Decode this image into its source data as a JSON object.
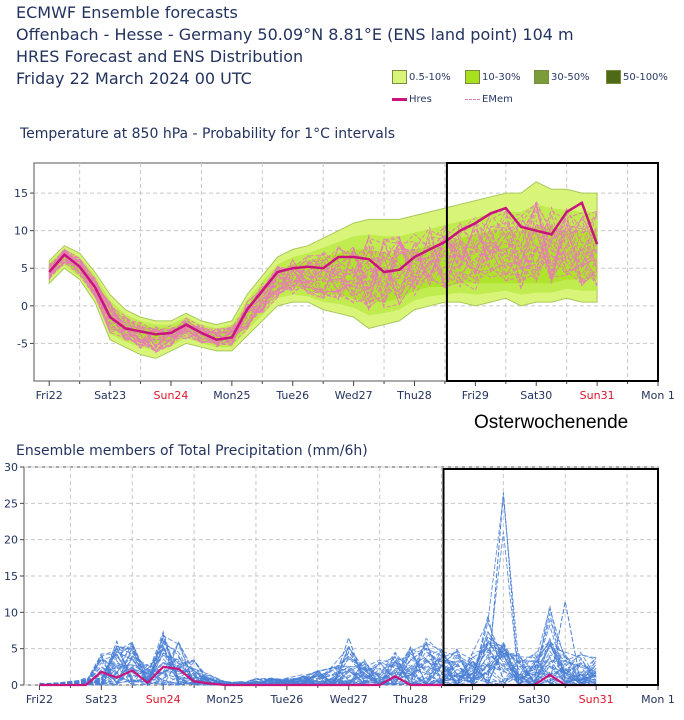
{
  "header": {
    "line1": "ECMWF Ensemble forecasts",
    "line2": "Offenbach - Hesse - Germany 50.09°N 8.81°E (ENS land point) 104 m",
    "line3": "HRES Forecast and ENS Distribution",
    "line4": "Friday 22 March 2024 00 UTC"
  },
  "legend": {
    "items": [
      {
        "label": "0.5-10%",
        "color": "#d8f57a"
      },
      {
        "label": "10-30%",
        "color": "#a8e020"
      },
      {
        "label": "30-50%",
        "color": "#7a9c3a"
      },
      {
        "label": "50-100%",
        "color": "#4e6a14"
      }
    ],
    "hres_label": "Hres",
    "emem_label": "EMem"
  },
  "annotation": "Osterwochenende",
  "chart_data": [
    {
      "type": "area",
      "title": "Temperature at 850 hPa - Probability for 1°C intervals",
      "xlabel": "",
      "ylabel": "",
      "ylim": [
        -10,
        19
      ],
      "categories": [
        "Fri22",
        "Sat23",
        "Sun24",
        "Mon25",
        "Tue26",
        "Wed27",
        "Thu28",
        "Fri29",
        "Sat30",
        "Sun31",
        "Mon 1"
      ],
      "category_colors": [
        "#23335f",
        "#23335f",
        "#e0142c",
        "#23335f",
        "#23335f",
        "#23335f",
        "#23335f",
        "#23335f",
        "#23335f",
        "#e0142c",
        "#23335f"
      ],
      "yticks": [
        -5,
        0,
        5,
        10,
        15
      ],
      "grid": true,
      "highlight_range": [
        7.0,
        10.0
      ],
      "hres": {
        "name": "Hres",
        "color": "#c8147c",
        "x": [
          0,
          0.25,
          0.5,
          0.75,
          1.0,
          1.25,
          1.5,
          1.75,
          2.0,
          2.25,
          2.5,
          2.75,
          3.0,
          3.25,
          3.5,
          3.75,
          4.0,
          4.25,
          4.5,
          4.75,
          5.0,
          5.25,
          5.5,
          5.75,
          6.0,
          6.25,
          6.5,
          6.75,
          7.0,
          7.25,
          7.5,
          7.75,
          8.0,
          8.25,
          8.5,
          8.75,
          9.0,
          9.25
        ],
        "values": [
          4.5,
          6.8,
          5.2,
          2.5,
          -1.5,
          -3.0,
          -3.4,
          -3.8,
          -3.6,
          -2.5,
          -3.6,
          -4.5,
          -4.2,
          -0.5,
          2.0,
          4.5,
          5.0,
          5.2,
          5.0,
          6.5,
          6.5,
          6.2,
          4.5,
          4.8,
          6.5,
          7.5,
          8.5,
          10.0,
          11.0,
          12.3,
          13.0,
          10.5,
          10.0,
          9.5,
          12.5,
          13.7,
          8.2,
          8.2
        ]
      },
      "ens_envelope": {
        "x": [
          0,
          0.25,
          0.5,
          0.75,
          1.0,
          1.25,
          1.5,
          1.75,
          2.0,
          2.25,
          2.5,
          2.75,
          3.0,
          3.25,
          3.5,
          3.75,
          4.0,
          4.25,
          4.5,
          4.75,
          5.0,
          5.25,
          5.5,
          5.75,
          6.0,
          6.25,
          6.5,
          6.75,
          7.0,
          7.25,
          7.5,
          7.75,
          8.0,
          8.25,
          8.5,
          8.75,
          9.0
        ],
        "upper": [
          6.0,
          8.0,
          7.0,
          4.5,
          1.5,
          -0.5,
          -1.5,
          -2.0,
          -2.0,
          -1.0,
          -2.0,
          -2.5,
          -2.0,
          1.5,
          4.0,
          6.5,
          7.5,
          8.0,
          9.0,
          10.0,
          11.0,
          11.5,
          11.5,
          11.5,
          12.0,
          12.5,
          13.0,
          13.5,
          14.0,
          14.5,
          15.0,
          15.0,
          16.5,
          15.5,
          15.5,
          15.0,
          15.0
        ],
        "lower": [
          3.0,
          5.0,
          3.5,
          0.5,
          -4.5,
          -5.5,
          -6.5,
          -7.0,
          -6.0,
          -5.0,
          -5.5,
          -6.0,
          -6.0,
          -4.0,
          -2.0,
          0.0,
          0.5,
          0.5,
          -0.5,
          -1.0,
          -1.5,
          -3.0,
          -2.5,
          -2.0,
          -0.5,
          0.0,
          0.5,
          0.5,
          0.0,
          0.5,
          1.0,
          0.0,
          0.5,
          0.5,
          1.0,
          0.5,
          0.5
        ]
      },
      "ens_core": {
        "x": [
          0,
          0.25,
          0.5,
          0.75,
          1.0,
          1.25,
          1.5,
          1.75,
          2.0,
          2.25,
          2.5,
          2.75,
          3.0,
          3.25,
          3.5,
          3.75,
          4.0,
          4.25,
          4.5,
          4.75,
          5.0,
          5.25,
          5.5,
          5.75,
          6.0,
          6.25,
          6.5,
          6.75,
          7.0,
          7.25,
          7.5,
          7.75,
          8.0,
          8.25,
          8.5,
          8.75,
          9.0
        ],
        "upper": [
          5.5,
          7.2,
          6.0,
          3.5,
          0.0,
          -1.8,
          -2.5,
          -3.0,
          -3.0,
          -2.0,
          -3.0,
          -3.5,
          -3.0,
          0.0,
          2.5,
          4.5,
          5.5,
          6.0,
          6.5,
          7.0,
          7.5,
          7.5,
          7.0,
          7.0,
          7.5,
          8.0,
          8.5,
          9.0,
          9.5,
          10.0,
          10.0,
          10.0,
          10.5,
          10.5,
          10.0,
          10.0,
          10.0
        ],
        "lower": [
          4.0,
          5.8,
          4.2,
          1.5,
          -3.0,
          -4.0,
          -4.5,
          -5.0,
          -4.8,
          -3.5,
          -4.5,
          -5.0,
          -5.0,
          -2.5,
          -0.5,
          2.0,
          2.5,
          2.0,
          1.5,
          1.5,
          1.0,
          0.5,
          0.5,
          1.0,
          2.0,
          2.5,
          2.5,
          3.0,
          3.0,
          3.0,
          3.0,
          3.0,
          3.0,
          3.0,
          3.5,
          3.5,
          3.5
        ]
      }
    },
    {
      "type": "line",
      "title": "Ensemble members of Total Precipitation (mm/6h)",
      "xlabel": "",
      "ylabel": "",
      "ylim": [
        0,
        30
      ],
      "categories": [
        "Fri22",
        "Sat23",
        "Sun24",
        "Mon25",
        "Tue26",
        "Wed27",
        "Thu28",
        "Fri29",
        "Sat30",
        "Sun31",
        "Mon 1"
      ],
      "category_colors": [
        "#23335f",
        "#23335f",
        "#e0142c",
        "#23335f",
        "#23335f",
        "#23335f",
        "#23335f",
        "#23335f",
        "#23335f",
        "#e0142c",
        "#23335f"
      ],
      "yticks": [
        0,
        5,
        10,
        15,
        20,
        25,
        30
      ],
      "grid": true,
      "highlight_range": [
        7.0,
        10.0
      ],
      "hres": {
        "name": "Hres",
        "color": "#c8147c",
        "x": [
          0,
          0.25,
          0.5,
          0.75,
          1.0,
          1.25,
          1.5,
          1.75,
          2.0,
          2.25,
          2.5,
          2.75,
          3.0,
          3.25,
          3.5,
          3.75,
          4.0,
          4.25,
          4.5,
          4.75,
          5.0,
          5.25,
          5.5,
          5.75,
          6.0,
          6.25,
          6.5,
          6.75,
          7.0,
          7.25,
          7.5,
          7.75,
          8.0,
          8.25,
          8.5,
          8.75,
          9.0
        ],
        "values": [
          0,
          0,
          0,
          0,
          1.8,
          1.0,
          2.0,
          0.3,
          2.5,
          2.2,
          0.5,
          0.2,
          0,
          0,
          0,
          0,
          0,
          0,
          0,
          0,
          0,
          0,
          0,
          1.2,
          0,
          0,
          0,
          0,
          0,
          0,
          0,
          0,
          0,
          1.4,
          0,
          0,
          0
        ]
      },
      "ens_spikes": [
        {
          "x": 7.5,
          "value": 26.5
        },
        {
          "x": 8.5,
          "value": 11.5
        },
        {
          "x": 7.25,
          "value": 9.5
        },
        {
          "x": 5.0,
          "value": 6.5
        },
        {
          "x": 2.0,
          "value": 7.0
        },
        {
          "x": 1.25,
          "value": 6.0
        }
      ],
      "ens_band_max": [
        0.3,
        0.3,
        0.5,
        1.0,
        4.5,
        5.5,
        6.5,
        3.0,
        7.5,
        6.0,
        3.5,
        1.5,
        0.5,
        0.5,
        1.0,
        1.0,
        1.0,
        1.5,
        2.0,
        3.0,
        5.5,
        3.5,
        3.5,
        4.5,
        5.5,
        6.5,
        5.0,
        5.0,
        5.0,
        9.5,
        26.5,
        5.0,
        5.0,
        11.5,
        5.0,
        4.5,
        4.5
      ]
    }
  ]
}
